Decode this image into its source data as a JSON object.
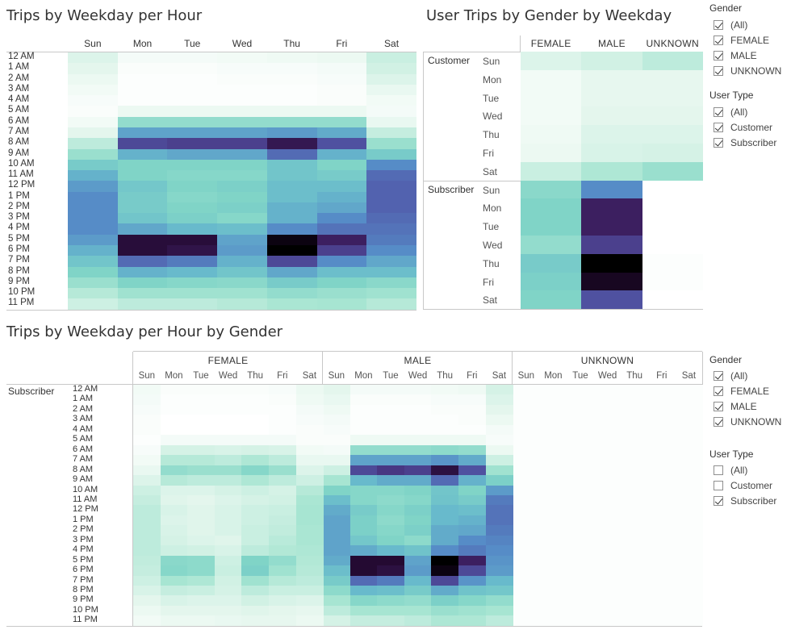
{
  "panel1": {
    "title": "Trips by Weekday per Hour",
    "days": [
      "Sun",
      "Mon",
      "Tue",
      "Wed",
      "Thu",
      "Fri",
      "Sat"
    ],
    "hours": [
      "12 AM",
      "1 AM",
      "2 AM",
      "3 AM",
      "4 AM",
      "5 AM",
      "6 AM",
      "7 AM",
      "8 AM",
      "9 AM",
      "10 AM",
      "11 AM",
      "12 PM",
      "1 PM",
      "2 PM",
      "3 PM",
      "4 PM",
      "5 PM",
      "6 PM",
      "7 PM",
      "8 PM",
      "9 PM",
      "10 PM",
      "11 PM"
    ],
    "matrix": [
      [
        0.12,
        0.04,
        0.04,
        0.05,
        0.06,
        0.07,
        0.17
      ],
      [
        0.1,
        0.02,
        0.02,
        0.03,
        0.03,
        0.04,
        0.15
      ],
      [
        0.07,
        0.01,
        0.01,
        0.02,
        0.02,
        0.03,
        0.12
      ],
      [
        0.05,
        0.01,
        0.01,
        0.01,
        0.01,
        0.02,
        0.08
      ],
      [
        0.03,
        0.01,
        0.01,
        0.01,
        0.01,
        0.02,
        0.05
      ],
      [
        0.02,
        0.07,
        0.07,
        0.07,
        0.07,
        0.07,
        0.04
      ],
      [
        0.05,
        0.32,
        0.32,
        0.32,
        0.32,
        0.32,
        0.08
      ],
      [
        0.1,
        0.56,
        0.56,
        0.56,
        0.58,
        0.54,
        0.18
      ],
      [
        0.2,
        0.78,
        0.8,
        0.8,
        0.9,
        0.76,
        0.3
      ],
      [
        0.3,
        0.52,
        0.55,
        0.55,
        0.7,
        0.52,
        0.42
      ],
      [
        0.42,
        0.38,
        0.38,
        0.38,
        0.45,
        0.38,
        0.62
      ],
      [
        0.52,
        0.38,
        0.36,
        0.36,
        0.45,
        0.42,
        0.7
      ],
      [
        0.58,
        0.44,
        0.38,
        0.4,
        0.48,
        0.48,
        0.72
      ],
      [
        0.62,
        0.42,
        0.36,
        0.38,
        0.48,
        0.52,
        0.72
      ],
      [
        0.62,
        0.42,
        0.38,
        0.4,
        0.52,
        0.55,
        0.72
      ],
      [
        0.62,
        0.45,
        0.4,
        0.36,
        0.52,
        0.62,
        0.7
      ],
      [
        0.62,
        0.55,
        0.5,
        0.48,
        0.62,
        0.68,
        0.68
      ],
      [
        0.58,
        0.93,
        0.93,
        0.56,
        0.98,
        0.88,
        0.66
      ],
      [
        0.52,
        0.93,
        0.91,
        0.58,
        1.0,
        0.8,
        0.62
      ],
      [
        0.45,
        0.7,
        0.66,
        0.52,
        0.78,
        0.62,
        0.55
      ],
      [
        0.38,
        0.52,
        0.5,
        0.45,
        0.55,
        0.48,
        0.48
      ],
      [
        0.3,
        0.38,
        0.36,
        0.35,
        0.42,
        0.38,
        0.35
      ],
      [
        0.22,
        0.28,
        0.28,
        0.28,
        0.32,
        0.3,
        0.28
      ],
      [
        0.16,
        0.2,
        0.2,
        0.22,
        0.25,
        0.26,
        0.22
      ]
    ]
  },
  "panel2": {
    "title": "User Trips by Gender by Weekday",
    "columns": [
      "FEMALE",
      "MALE",
      "UNKNOWN"
    ],
    "groups": [
      {
        "label": "Customer",
        "days": [
          "Sun",
          "Mon",
          "Tue",
          "Wed",
          "Thu",
          "Fri",
          "Sat"
        ]
      },
      {
        "label": "Subscriber",
        "days": [
          "Sun",
          "Mon",
          "Tue",
          "Wed",
          "Thu",
          "Fri",
          "Sat"
        ]
      }
    ],
    "matrix": [
      [
        0.12,
        0.15,
        0.2
      ],
      [
        0.05,
        0.09,
        0.09
      ],
      [
        0.05,
        0.09,
        0.09
      ],
      [
        0.05,
        0.1,
        0.1
      ],
      [
        0.06,
        0.12,
        0.12
      ],
      [
        0.07,
        0.13,
        0.14
      ],
      [
        0.17,
        0.24,
        0.3
      ],
      [
        0.35,
        0.62,
        0.0
      ],
      [
        0.38,
        0.88,
        0.0
      ],
      [
        0.38,
        0.88,
        0.0
      ],
      [
        0.32,
        0.8,
        0.0
      ],
      [
        0.42,
        1.0,
        0.01
      ],
      [
        0.4,
        0.96,
        0.01
      ],
      [
        0.38,
        0.76,
        0.0
      ]
    ]
  },
  "panel3": {
    "title": "Trips by Weekday per Hour by Gender",
    "genders": [
      "FEMALE",
      "MALE",
      "UNKNOWN"
    ],
    "days": [
      "Sun",
      "Mon",
      "Tue",
      "Wed",
      "Thu",
      "Fri",
      "Sat"
    ],
    "row_group": "Subscriber",
    "hours": [
      "12 AM",
      "1 AM",
      "2 AM",
      "3 AM",
      "4 AM",
      "5 AM",
      "6 AM",
      "7 AM",
      "8 AM",
      "9 AM",
      "10 AM",
      "11 AM",
      "12 PM",
      "1 PM",
      "2 PM",
      "3 PM",
      "4 PM",
      "5 PM",
      "6 PM",
      "7 PM",
      "8 PM",
      "9 PM",
      "10 PM",
      "11 PM"
    ],
    "female": [
      [
        0.05,
        0.02,
        0.02,
        0.02,
        0.02,
        0.03,
        0.07
      ],
      [
        0.04,
        0.01,
        0.01,
        0.01,
        0.01,
        0.02,
        0.06
      ],
      [
        0.03,
        0.01,
        0.01,
        0.01,
        0.01,
        0.01,
        0.04
      ],
      [
        0.02,
        0.0,
        0.0,
        0.0,
        0.0,
        0.01,
        0.03
      ],
      [
        0.02,
        0.0,
        0.0,
        0.0,
        0.0,
        0.01,
        0.02
      ],
      [
        0.01,
        0.04,
        0.04,
        0.04,
        0.04,
        0.04,
        0.02
      ],
      [
        0.03,
        0.14,
        0.14,
        0.13,
        0.14,
        0.13,
        0.05
      ],
      [
        0.05,
        0.22,
        0.22,
        0.2,
        0.24,
        0.2,
        0.08
      ],
      [
        0.08,
        0.32,
        0.3,
        0.3,
        0.36,
        0.3,
        0.12
      ],
      [
        0.12,
        0.22,
        0.2,
        0.2,
        0.24,
        0.2,
        0.16
      ],
      [
        0.16,
        0.12,
        0.12,
        0.14,
        0.16,
        0.14,
        0.22
      ],
      [
        0.18,
        0.11,
        0.1,
        0.12,
        0.14,
        0.15,
        0.25
      ],
      [
        0.2,
        0.13,
        0.11,
        0.13,
        0.16,
        0.17,
        0.26
      ],
      [
        0.2,
        0.12,
        0.11,
        0.13,
        0.16,
        0.18,
        0.26
      ],
      [
        0.2,
        0.13,
        0.11,
        0.13,
        0.17,
        0.19,
        0.25
      ],
      [
        0.2,
        0.14,
        0.12,
        0.11,
        0.17,
        0.21,
        0.25
      ],
      [
        0.2,
        0.16,
        0.15,
        0.13,
        0.2,
        0.23,
        0.24
      ],
      [
        0.19,
        0.35,
        0.34,
        0.16,
        0.38,
        0.32,
        0.23
      ],
      [
        0.18,
        0.36,
        0.34,
        0.17,
        0.4,
        0.28,
        0.22
      ],
      [
        0.16,
        0.26,
        0.24,
        0.15,
        0.28,
        0.22,
        0.2
      ],
      [
        0.13,
        0.18,
        0.17,
        0.14,
        0.2,
        0.17,
        0.17
      ],
      [
        0.1,
        0.13,
        0.12,
        0.12,
        0.15,
        0.13,
        0.12
      ],
      [
        0.07,
        0.1,
        0.1,
        0.1,
        0.11,
        0.1,
        0.09
      ],
      [
        0.05,
        0.07,
        0.07,
        0.08,
        0.09,
        0.09,
        0.07
      ]
    ],
    "male": [
      [
        0.1,
        0.04,
        0.04,
        0.04,
        0.05,
        0.06,
        0.14
      ],
      [
        0.08,
        0.02,
        0.02,
        0.02,
        0.03,
        0.03,
        0.12
      ],
      [
        0.06,
        0.01,
        0.01,
        0.01,
        0.02,
        0.02,
        0.1
      ],
      [
        0.04,
        0.01,
        0.01,
        0.01,
        0.01,
        0.02,
        0.07
      ],
      [
        0.03,
        0.01,
        0.01,
        0.01,
        0.01,
        0.01,
        0.04
      ],
      [
        0.02,
        0.06,
        0.06,
        0.06,
        0.06,
        0.06,
        0.03
      ],
      [
        0.04,
        0.32,
        0.32,
        0.32,
        0.34,
        0.32,
        0.07
      ],
      [
        0.08,
        0.56,
        0.56,
        0.56,
        0.6,
        0.54,
        0.16
      ],
      [
        0.16,
        0.78,
        0.82,
        0.8,
        0.92,
        0.76,
        0.28
      ],
      [
        0.26,
        0.5,
        0.54,
        0.54,
        0.7,
        0.52,
        0.4
      ],
      [
        0.38,
        0.36,
        0.36,
        0.38,
        0.45,
        0.38,
        0.58
      ],
      [
        0.48,
        0.36,
        0.34,
        0.36,
        0.46,
        0.42,
        0.66
      ],
      [
        0.54,
        0.42,
        0.36,
        0.4,
        0.5,
        0.48,
        0.68
      ],
      [
        0.56,
        0.4,
        0.34,
        0.38,
        0.5,
        0.52,
        0.68
      ],
      [
        0.56,
        0.4,
        0.36,
        0.4,
        0.54,
        0.55,
        0.66
      ],
      [
        0.56,
        0.44,
        0.38,
        0.34,
        0.54,
        0.62,
        0.64
      ],
      [
        0.56,
        0.54,
        0.5,
        0.46,
        0.62,
        0.66,
        0.62
      ],
      [
        0.54,
        0.94,
        0.94,
        0.56,
        1.0,
        0.88,
        0.6
      ],
      [
        0.48,
        0.94,
        0.92,
        0.58,
        0.98,
        0.78,
        0.58
      ],
      [
        0.42,
        0.7,
        0.66,
        0.5,
        0.78,
        0.6,
        0.5
      ],
      [
        0.34,
        0.5,
        0.48,
        0.42,
        0.54,
        0.46,
        0.44
      ],
      [
        0.26,
        0.36,
        0.34,
        0.32,
        0.4,
        0.36,
        0.32
      ],
      [
        0.2,
        0.26,
        0.26,
        0.26,
        0.3,
        0.28,
        0.26
      ],
      [
        0.14,
        0.18,
        0.18,
        0.2,
        0.24,
        0.24,
        0.2
      ]
    ],
    "unknown_level": 0.01
  },
  "filters_top": {
    "gender_title": "Gender",
    "gender_items": [
      {
        "label": "(All)",
        "checked": true
      },
      {
        "label": "FEMALE",
        "checked": true
      },
      {
        "label": "MALE",
        "checked": true
      },
      {
        "label": "UNKNOWN",
        "checked": true
      }
    ],
    "usertype_title": "User Type",
    "usertype_items": [
      {
        "label": "(All)",
        "checked": true
      },
      {
        "label": "Customer",
        "checked": true
      },
      {
        "label": "Subscriber",
        "checked": true
      }
    ]
  },
  "filters_bottom": {
    "gender_title": "Gender",
    "gender_items": [
      {
        "label": "(All)",
        "checked": true
      },
      {
        "label": "FEMALE",
        "checked": true
      },
      {
        "label": "MALE",
        "checked": true
      },
      {
        "label": "UNKNOWN",
        "checked": true
      }
    ],
    "usertype_title": "User Type",
    "usertype_items": [
      {
        "label": "(All)",
        "checked": false
      },
      {
        "label": "Customer",
        "checked": false
      },
      {
        "label": "Subscriber",
        "checked": true
      }
    ]
  }
}
